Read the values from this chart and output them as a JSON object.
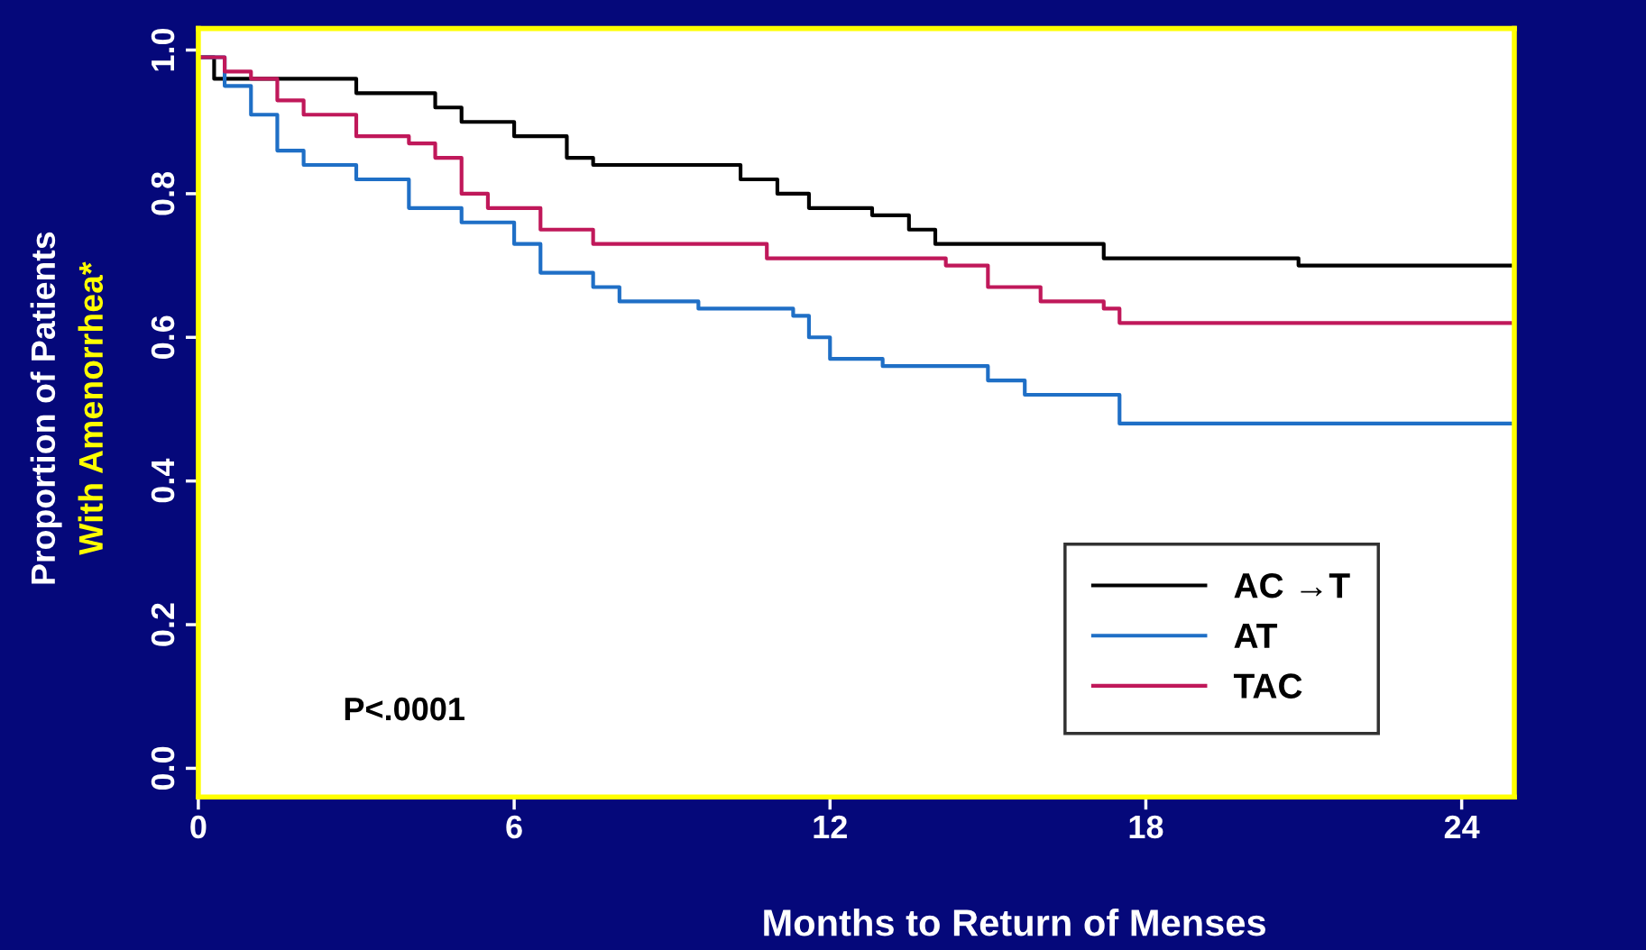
{
  "chart_data": {
    "type": "step",
    "xlabel": "Months to Return of Menses",
    "ylabel": "Proportion of Patients\nWith Amenorrhea*",
    "xlim": [
      0,
      25
    ],
    "ylim": [
      -0.04,
      1.03
    ],
    "xticks": [
      0,
      6,
      12,
      18,
      24
    ],
    "yticks": [
      {
        "value": 0,
        "label": "0.0"
      },
      0.2,
      0.4,
      0.6,
      0.8,
      {
        "value": 1,
        "label": "1.0"
      }
    ],
    "series": [
      {
        "name": "AC →T",
        "color": "#000000",
        "x": [
          0,
          0.3,
          3.0,
          4.5,
          5.0,
          6.0,
          7.0,
          7.5,
          10.3,
          11.0,
          11.6,
          12.8,
          13.5,
          14.0,
          17.2,
          20.9,
          25
        ],
        "values": [
          0.99,
          0.96,
          0.94,
          0.92,
          0.9,
          0.88,
          0.85,
          0.84,
          0.82,
          0.8,
          0.78,
          0.77,
          0.75,
          0.73,
          0.71,
          0.7,
          0.7
        ]
      },
      {
        "name": "AT",
        "color": "#1f6fc6",
        "x": [
          0,
          0.5,
          1.0,
          1.5,
          2.0,
          3.0,
          4.0,
          5.0,
          6.0,
          6.5,
          7.5,
          8.0,
          9.5,
          11.3,
          11.6,
          12.0,
          13.0,
          15.0,
          15.7,
          17.5,
          25
        ],
        "values": [
          0.99,
          0.95,
          0.91,
          0.86,
          0.84,
          0.82,
          0.78,
          0.76,
          0.73,
          0.69,
          0.67,
          0.65,
          0.64,
          0.63,
          0.6,
          0.57,
          0.56,
          0.54,
          0.52,
          0.48,
          0.48
        ]
      },
      {
        "name": "TAC",
        "color": "#c0185a",
        "x": [
          0,
          0.5,
          1.0,
          1.5,
          2.0,
          3.0,
          4.0,
          4.5,
          5.0,
          5.5,
          6.5,
          7.5,
          10.8,
          14.2,
          15.0,
          16.0,
          17.2,
          17.5,
          25
        ],
        "values": [
          0.99,
          0.97,
          0.96,
          0.93,
          0.91,
          0.88,
          0.87,
          0.85,
          0.8,
          0.78,
          0.75,
          0.73,
          0.71,
          0.7,
          0.67,
          0.65,
          0.64,
          0.62,
          0.62
        ]
      }
    ],
    "legend": "bottom right",
    "grid": false,
    "marker": "none",
    "line_style": "solid",
    "annotations": [
      "P<.0001"
    ]
  }
}
